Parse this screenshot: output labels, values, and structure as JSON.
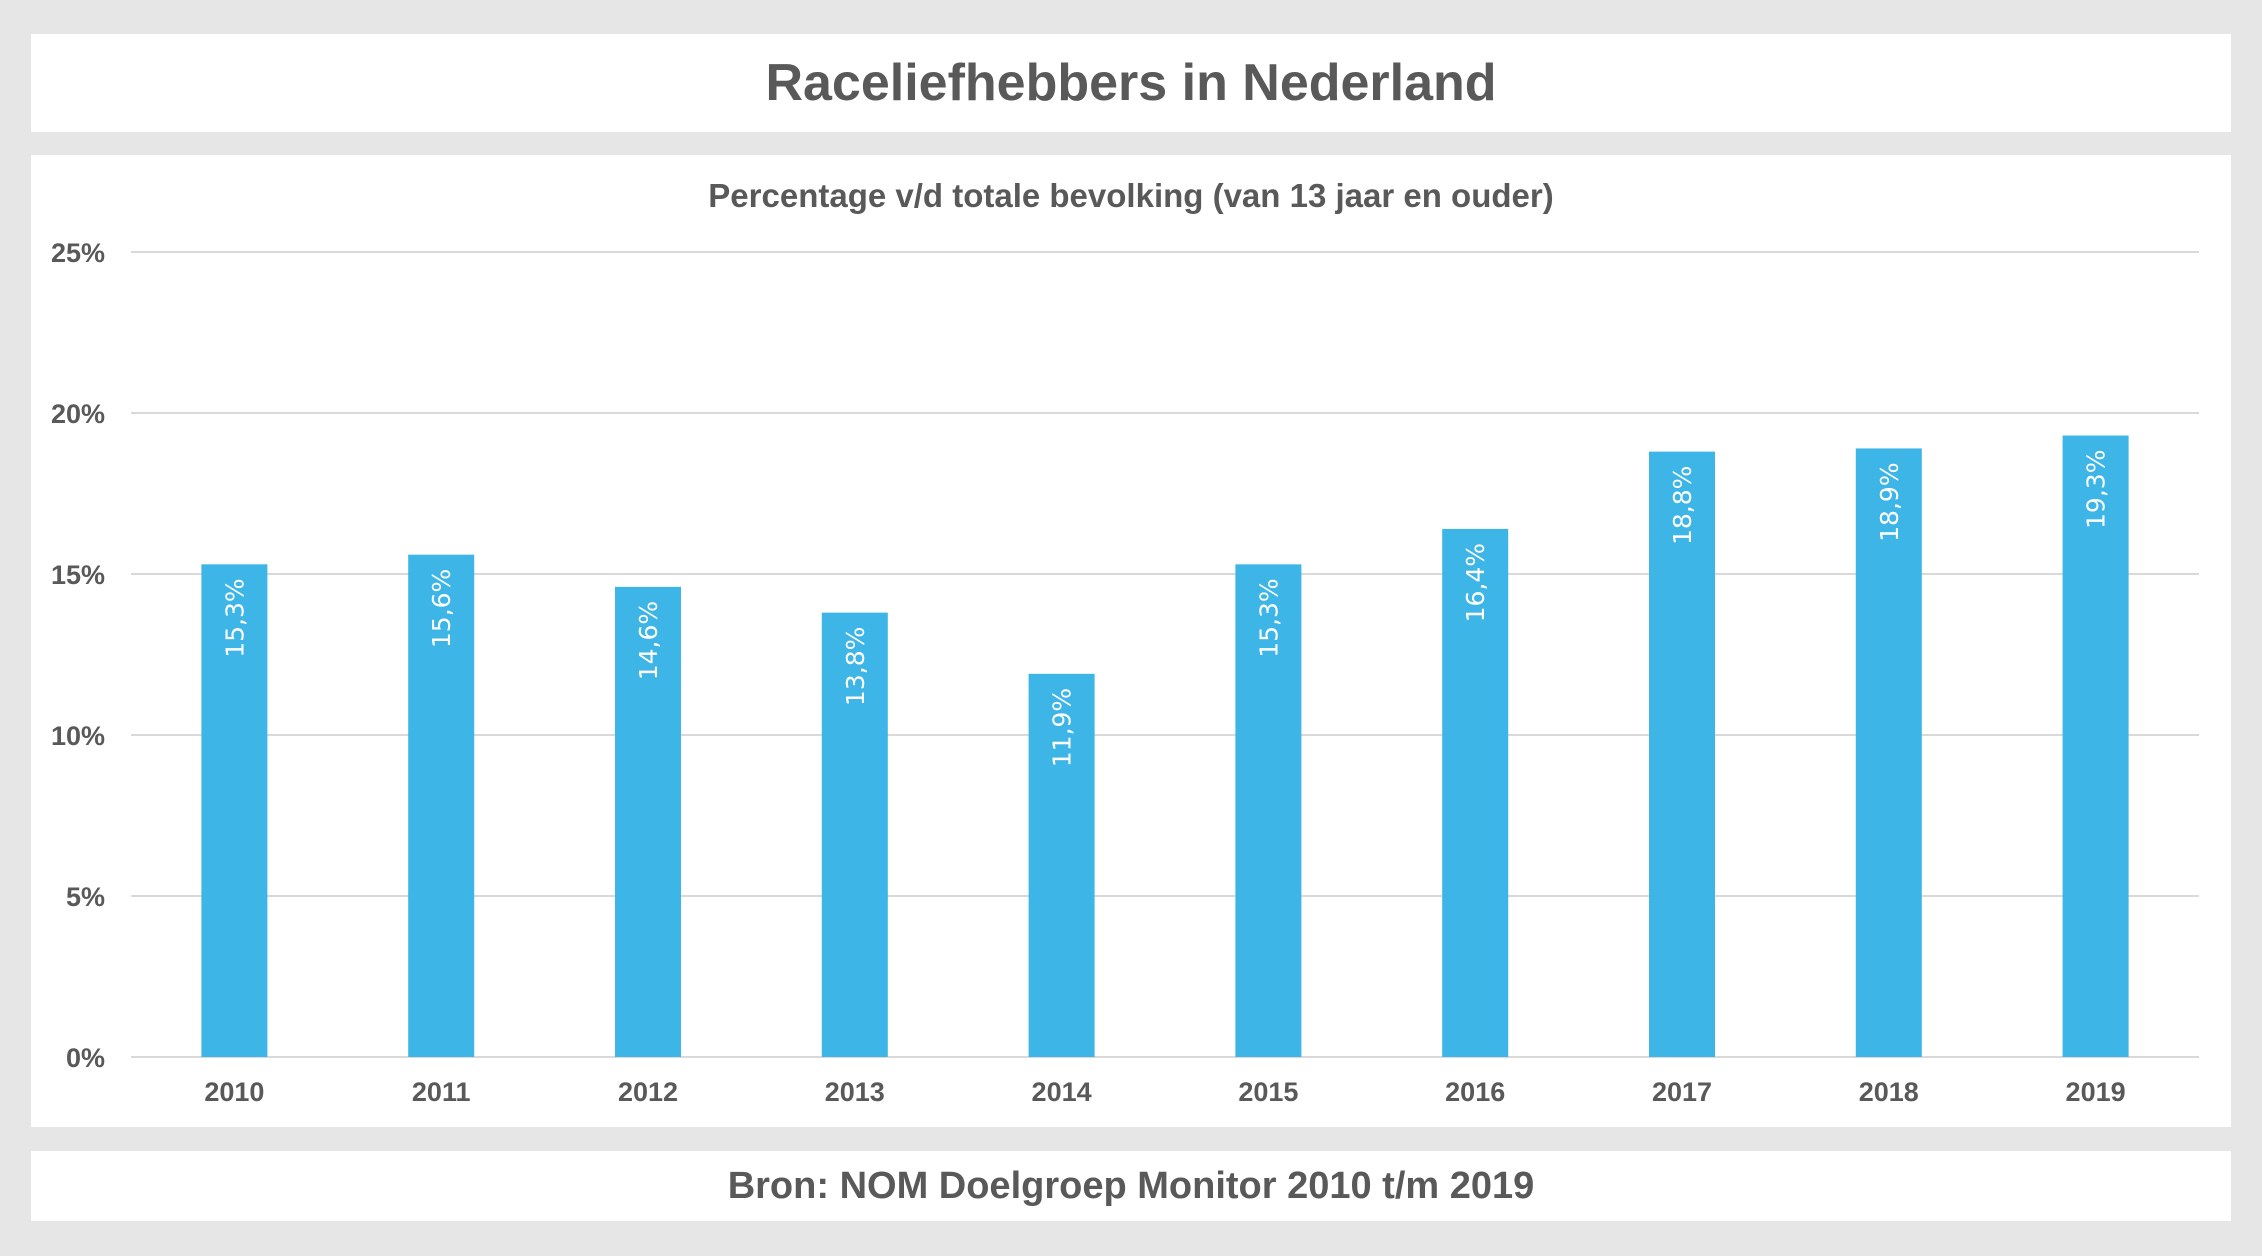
{
  "header": {
    "title": "Raceliefhebbers in Nederland"
  },
  "footer": {
    "source": "Bron: NOM Doelgroep Monitor 2010 t/m 2019"
  },
  "chart_data": {
    "type": "bar",
    "title": "Raceliefhebbers in Nederland",
    "subtitle": "Percentage v/d totale bevolking (van 13 jaar en ouder)",
    "xlabel": "",
    "ylabel": "",
    "categories": [
      "2010",
      "2011",
      "2012",
      "2013",
      "2014",
      "2015",
      "2016",
      "2017",
      "2018",
      "2019"
    ],
    "values": [
      15.3,
      15.6,
      14.6,
      13.8,
      11.9,
      15.3,
      16.4,
      18.8,
      18.9,
      19.3
    ],
    "data_labels": [
      "15,3%",
      "15,6%",
      "14,6%",
      "13,8%",
      "11,9%",
      "15,3%",
      "16,4%",
      "18,8%",
      "18,9%",
      "19,3%"
    ],
    "ylim": [
      0,
      25
    ],
    "yticks": [
      0,
      5,
      10,
      15,
      20,
      25
    ],
    "ytick_labels": [
      "0%",
      "5%",
      "10%",
      "15%",
      "20%",
      "25%"
    ],
    "grid": true,
    "legend": "none",
    "bar_color": "#3db5e6",
    "data_label_color": "#ffffff",
    "data_label_orientation": "vertical"
  }
}
